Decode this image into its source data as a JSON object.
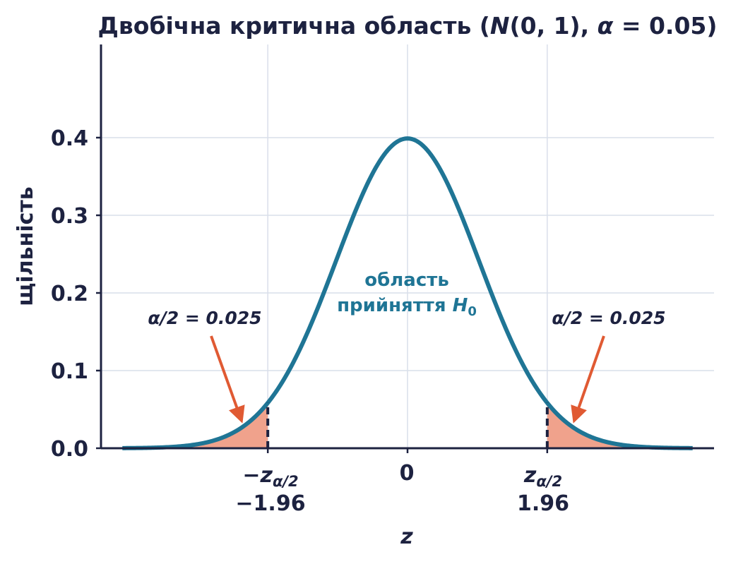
{
  "chart_data": {
    "type": "area",
    "title": "Двобічна критична область (N(0, 1), α = 0.05)",
    "title_parts": {
      "pre": "Двобічна критична область (",
      "N": "N",
      "args": "(0, 1), ",
      "alpha": "α",
      "eq": " = 0.05)"
    },
    "xlabel": "z",
    "ylabel": "щільність",
    "xlim": [
      -4.3,
      4.3
    ],
    "ylim": [
      0,
      0.52
    ],
    "grid": true,
    "yticks": [
      "0.0",
      "0.1",
      "0.2",
      "0.3",
      "0.4"
    ],
    "ytick_values": [
      0.0,
      0.1,
      0.2,
      0.3,
      0.4
    ],
    "xtick_values": [
      -1.96,
      0,
      1.96
    ],
    "xticks": {
      "left": {
        "symbol": "−z",
        "sub": "α/2",
        "value": "−1.96"
      },
      "center": {
        "value": "0"
      },
      "right": {
        "symbol": "z",
        "sub": "α/2",
        "value": "1.96"
      }
    },
    "series": [
      {
        "distribution": "normal",
        "mean": 0,
        "sd": 1,
        "x_range": [
          -4,
          4
        ]
      }
    ],
    "critical_values": [
      -1.96,
      1.96
    ],
    "annotations": {
      "region_line1": "область",
      "region_line2": "прийняття ",
      "region_H": "H",
      "region_sub": "0",
      "left_tail": "α/2 = 0.025",
      "right_tail": "α/2 = 0.025"
    },
    "colors": {
      "curve": "#1f7595",
      "fill": "#f0a28c",
      "arrow": "#e05a33",
      "axis": "#1d2240",
      "grid": "#d9dfea",
      "region_text": "#1f7595"
    }
  }
}
